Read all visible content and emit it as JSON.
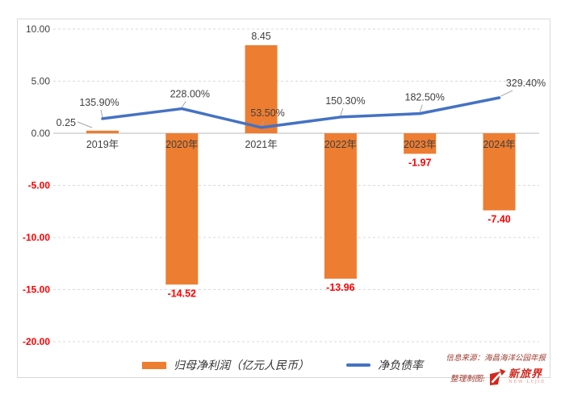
{
  "chart_data": {
    "type": "combo",
    "categories": [
      "2019年",
      "2020年",
      "2021年",
      "2022年",
      "2023年",
      "2024年"
    ],
    "series": [
      {
        "name": "归母净利润（亿元人民币）",
        "type": "bar",
        "axis": "left",
        "values": [
          0.25,
          -14.52,
          8.45,
          -13.96,
          -1.97,
          -7.4
        ],
        "labels": [
          "0.25",
          "-14.52",
          "8.45",
          "-13.96",
          "-1.97",
          "-7.40"
        ],
        "color": "#ED7D31",
        "positive_label_color": "#404040",
        "negative_label_color": "#FF0000"
      },
      {
        "name": "净负债率",
        "type": "line",
        "axis": "right-hidden",
        "values_percent": [
          135.9,
          228.0,
          53.5,
          150.3,
          182.5,
          329.4
        ],
        "labels": [
          "135.90%",
          "228.00%",
          "53.50%",
          "150.30%",
          "182.50%",
          "329.40%"
        ],
        "color": "#4472C4",
        "label_color": "#404040"
      }
    ],
    "y_axis": {
      "tick_values": [
        10,
        5,
        0,
        -5,
        -10,
        -15,
        -20
      ],
      "tick_labels": [
        "10.00",
        "5.00",
        "0.00",
        "-5.00",
        "-10.00",
        "-15.00",
        "-20.00"
      ],
      "positive_color": "#404040",
      "negative_color": "#FF0000",
      "range": [
        -20,
        10
      ]
    },
    "grid": {
      "style": "dashed",
      "color": "#D9D9D9",
      "zero_line_color": "#C6C6C6"
    },
    "leader_line_color": "#A6A6A6",
    "legend_position": "bottom",
    "title": ""
  },
  "legend": {
    "bar_label": "归母净利润（亿元人民币）",
    "line_label": "净负债率"
  },
  "footer": {
    "source": "信息来源：海昌海洋公园年报",
    "credit": "整理制图:",
    "logo_text": "新旅界",
    "logo_subtext": "NEW LVJIE"
  }
}
